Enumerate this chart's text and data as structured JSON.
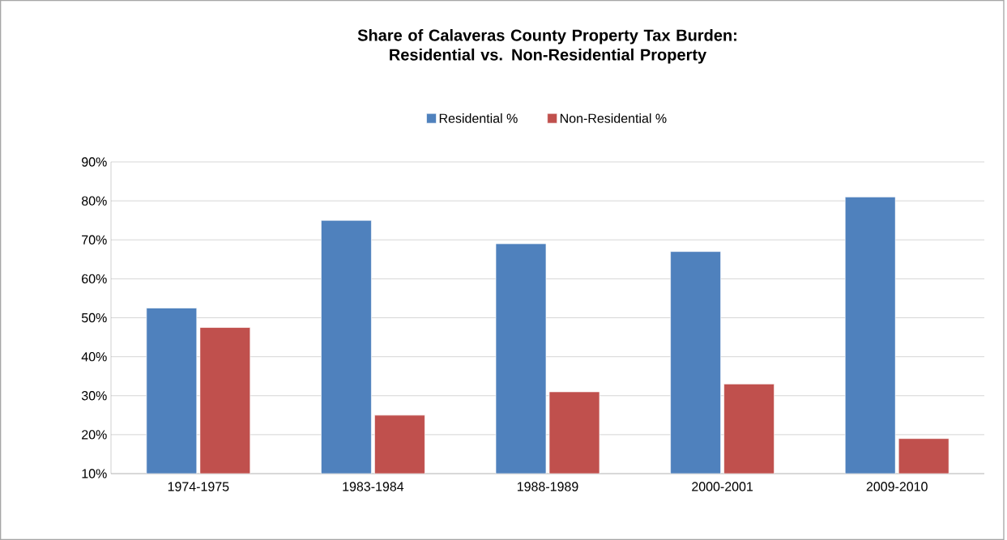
{
  "chart_data": {
    "type": "bar",
    "title": "Share of Calaveras County Property Tax Burden: Residential vs. Non-Residential Property",
    "categories": [
      "1974-1975",
      "1983-1984",
      "1988-1989",
      "2000-2001",
      "2009-2010"
    ],
    "series": [
      {
        "name": "Residential %",
        "color": "#4f81bd",
        "values": [
          52.5,
          75,
          69,
          67,
          81
        ]
      },
      {
        "name": "Non-Residential %",
        "color": "#c0504d",
        "values": [
          47.5,
          25,
          31,
          33,
          19
        ]
      }
    ],
    "ylim": [
      10,
      90
    ],
    "yticks": [
      {
        "value": 10,
        "label": "10%"
      },
      {
        "value": 20,
        "label": "20%"
      },
      {
        "value": 30,
        "label": "30%"
      },
      {
        "value": 40,
        "label": "40%"
      },
      {
        "value": 50,
        "label": "50%"
      },
      {
        "value": 60,
        "label": "60%"
      },
      {
        "value": 70,
        "label": "70%"
      },
      {
        "value": 80,
        "label": "80%"
      },
      {
        "value": 90,
        "label": "90%"
      }
    ],
    "grid": "y",
    "legend": "top"
  }
}
